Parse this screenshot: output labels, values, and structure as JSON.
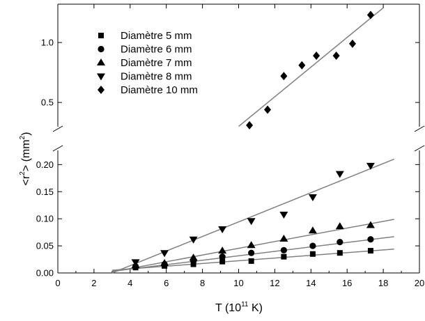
{
  "chart_data": {
    "type": "scatter",
    "xlabel": {
      "prefix": "T (10",
      "exp": "11",
      "suffix": " K)"
    },
    "ylabel": {
      "prefix": "<r",
      "exp": "2",
      "mid": "> (mm",
      "exp2": "2",
      "suffix": ")"
    },
    "xlim": [
      0,
      20
    ],
    "x_ticks": [
      0,
      2,
      4,
      6,
      8,
      10,
      12,
      14,
      16,
      18,
      20
    ],
    "y_axis_broken": true,
    "y_lower": {
      "range": [
        0,
        0.23
      ],
      "ticks": [
        0.0,
        0.05,
        0.1,
        0.15,
        0.2
      ],
      "tick_labels": [
        "0.00",
        "0.05",
        "0.10",
        "0.15",
        "0.20"
      ]
    },
    "y_upper": {
      "range": [
        0.28,
        1.32
      ],
      "ticks": [
        0.5,
        1.0
      ],
      "tick_labels": [
        "0.5",
        "1.0"
      ]
    },
    "legend_position": "top-left",
    "series": [
      {
        "name": "Diamètre 5 mm",
        "marker": "square",
        "x": [
          4.3,
          5.9,
          7.5,
          9.1,
          10.7,
          12.5,
          14.1,
          15.6,
          17.3
        ],
        "y": [
          0.01,
          0.013,
          0.016,
          0.021,
          0.022,
          0.03,
          0.035,
          0.037,
          0.041
        ],
        "fit": [
          [
            3.0,
            0.005
          ],
          [
            18.6,
            0.044
          ]
        ]
      },
      {
        "name": "Diamètre 6 mm",
        "marker": "circle",
        "x": [
          4.3,
          5.9,
          7.5,
          9.1,
          10.7,
          12.5,
          14.1,
          15.6,
          17.3
        ],
        "y": [
          0.012,
          0.016,
          0.022,
          0.03,
          0.037,
          0.042,
          0.05,
          0.057,
          0.062
        ],
        "fit": [
          [
            3.0,
            0.003
          ],
          [
            18.6,
            0.067
          ]
        ]
      },
      {
        "name": "Diamètre 7 mm",
        "marker": "triangle-up",
        "x": [
          4.3,
          5.9,
          7.5,
          9.1,
          10.7,
          12.5,
          14.1,
          15.6,
          17.3
        ],
        "y": [
          0.014,
          0.018,
          0.028,
          0.041,
          0.051,
          0.063,
          0.078,
          0.086,
          0.088
        ],
        "fit": [
          [
            3.0,
            0.002
          ],
          [
            18.6,
            0.099
          ]
        ]
      },
      {
        "name": "Diamètre 8 mm",
        "marker": "triangle-down",
        "x": [
          4.3,
          5.9,
          7.5,
          9.1,
          10.7,
          12.5,
          14.1,
          15.6,
          17.3
        ],
        "y": [
          0.02,
          0.037,
          0.062,
          0.081,
          0.096,
          0.108,
          0.14,
          0.183,
          0.198
        ],
        "fit": [
          [
            3.0,
            0.0
          ],
          [
            18.6,
            0.21
          ]
        ]
      },
      {
        "name": "Diamètre 10 mm",
        "marker": "diamond",
        "x": [
          10.6,
          11.6,
          12.5,
          13.5,
          14.3,
          15.4,
          16.3,
          17.3
        ],
        "y": [
          0.31,
          0.44,
          0.72,
          0.81,
          0.89,
          0.89,
          0.99,
          1.23
        ],
        "fit": [
          [
            10.0,
            0.3
          ],
          [
            18.0,
            1.29
          ]
        ]
      }
    ]
  }
}
